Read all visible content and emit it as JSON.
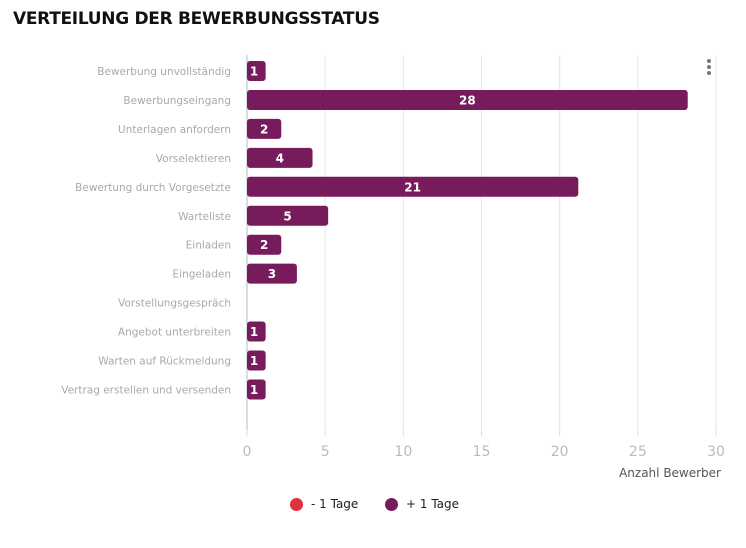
{
  "chart_data": {
    "type": "bar",
    "orientation": "horizontal",
    "title": "VERTEILUNG DER BEWERBUNGSSTATUS",
    "categories": [
      "Bewerbung unvollständig",
      "Bewerbungseingang",
      "Unterlagen anfordern",
      "Vorselektieren",
      "Bewertung durch Vorgesetzte",
      "Warteliste",
      "Einladen",
      "Eingeladen",
      "Vorstellungsgespräch",
      "Angebot unterbreiten",
      "Warten auf Rückmeldung",
      "Vertrag erstellen und versenden"
    ],
    "series": [
      {
        "name": "- 1 Tage",
        "color": "#e0313f",
        "values": [
          0,
          0,
          0,
          0,
          0,
          0,
          0,
          0,
          0,
          0,
          0,
          0
        ]
      },
      {
        "name": "+ 1 Tage",
        "color": "#771b5c",
        "values": [
          1,
          28,
          2,
          4,
          21,
          5,
          2,
          3,
          0,
          1,
          1,
          1
        ]
      }
    ],
    "xlabel": "Anzahl Bewerber",
    "ylabel": "",
    "xlim": [
      0,
      30
    ],
    "xticks": [
      0,
      5,
      10,
      15,
      20,
      25,
      30
    ],
    "grid": true,
    "legend": "bottom-center"
  }
}
